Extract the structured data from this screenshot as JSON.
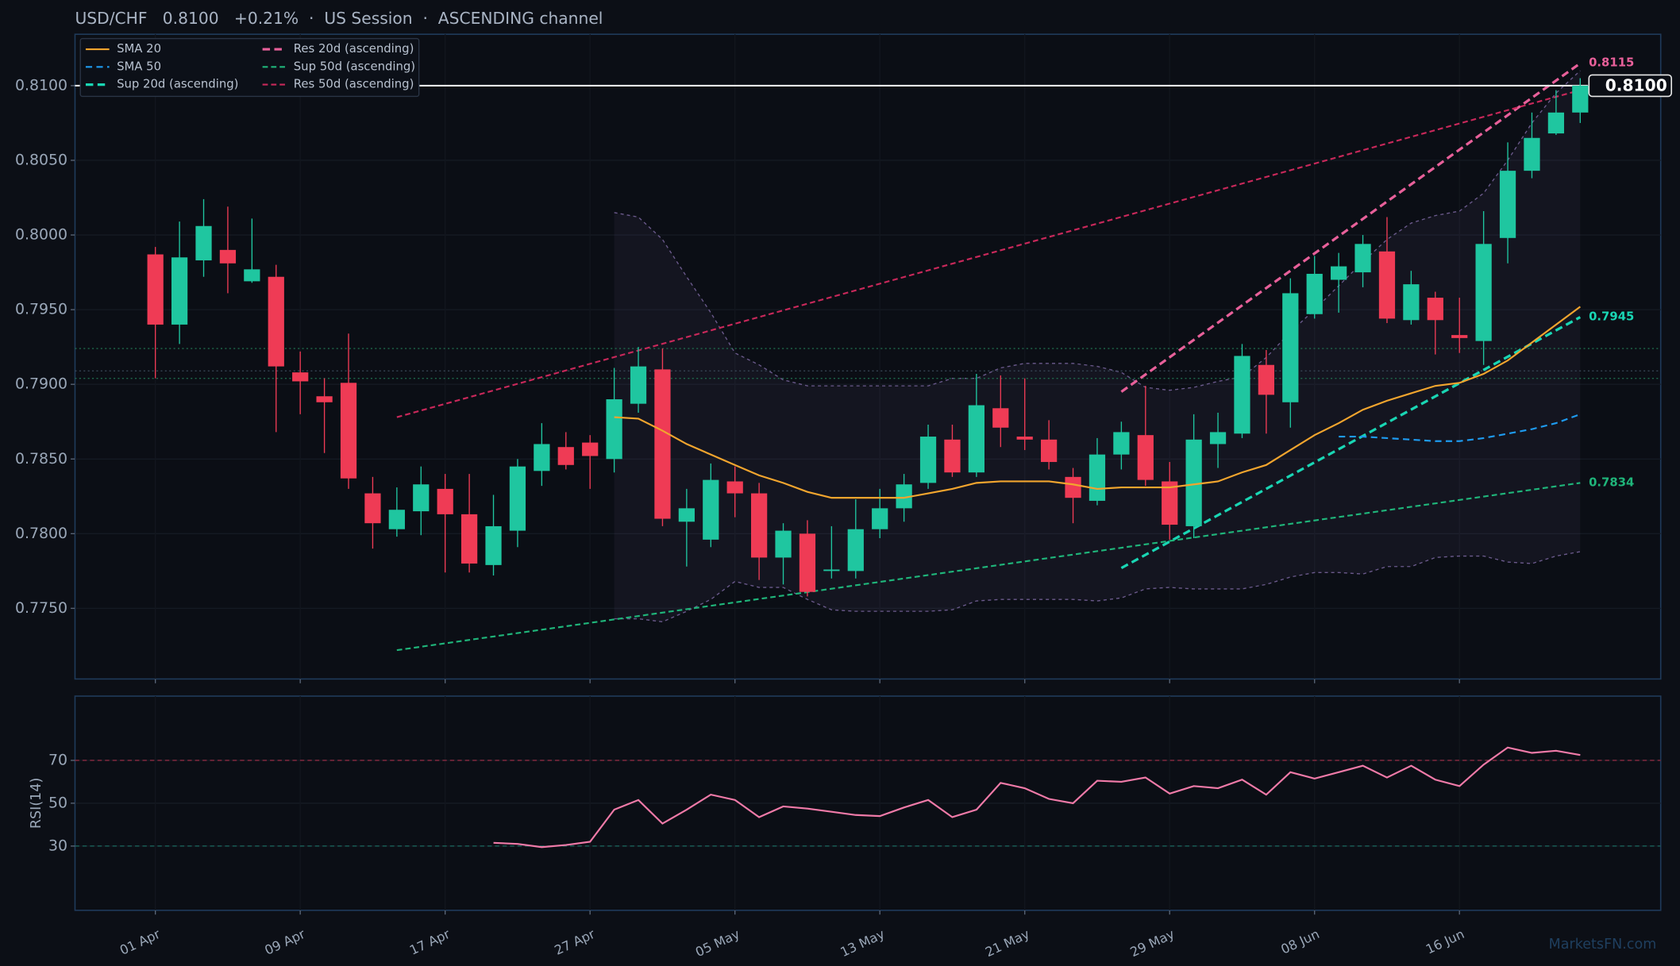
{
  "chart_data": [
    {
      "type": "candlestick",
      "title": "USD/CHF   0.8100   +0.21%  ·  US Session  ·  ASCENDING channel",
      "categories": [
        "01 Apr",
        null,
        null,
        null,
        null,
        null,
        "09 Apr",
        null,
        null,
        null,
        null,
        null,
        "17 Apr",
        null,
        null,
        null,
        null,
        null,
        "27 Apr",
        null,
        null,
        null,
        null,
        null,
        "05 May",
        null,
        null,
        null,
        null,
        null,
        "13 May",
        null,
        null,
        null,
        null,
        null,
        "21 May",
        null,
        null,
        null,
        null,
        null,
        "29 May",
        null,
        null,
        null,
        null,
        null,
        "08 Jun",
        null,
        null,
        null,
        null,
        null,
        "16 Jun",
        null,
        null,
        null,
        null,
        null
      ],
      "open": [
        0.7987,
        0.794,
        0.7983,
        0.799,
        0.7969,
        0.7972,
        0.7908,
        0.7892,
        0.7901,
        0.7827,
        0.7803,
        0.7815,
        0.783,
        0.7813,
        0.7779,
        0.7802,
        0.7842,
        0.7858,
        0.7861,
        0.785,
        0.7887,
        0.791,
        0.7808,
        0.7796,
        0.7835,
        0.7827,
        0.7784,
        0.78,
        0.7775,
        0.7775,
        0.7803,
        0.7817,
        0.7834,
        0.7863,
        0.7841,
        0.7884,
        0.7865,
        0.7863,
        0.7838,
        0.7822,
        0.7853,
        0.7866,
        0.7835,
        0.7805,
        0.786,
        0.7867,
        0.7913,
        0.7888,
        0.7947,
        0.797,
        0.7975,
        0.7989,
        0.7943,
        0.7958,
        0.7933,
        0.7929,
        0.7998,
        0.8043,
        0.8068,
        0.8082
      ],
      "high": [
        0.7992,
        0.8009,
        0.8024,
        0.8019,
        0.8011,
        0.798,
        0.7922,
        0.7904,
        0.7934,
        0.7838,
        0.7831,
        0.7845,
        0.784,
        0.784,
        0.7826,
        0.785,
        0.7874,
        0.7868,
        0.7866,
        0.7911,
        0.7925,
        0.7924,
        0.783,
        0.7847,
        0.7845,
        0.7834,
        0.7807,
        0.7809,
        0.7805,
        0.7823,
        0.783,
        0.784,
        0.7873,
        0.7873,
        0.7907,
        0.7906,
        0.7904,
        0.7876,
        0.7844,
        0.7864,
        0.7875,
        0.7899,
        0.7848,
        0.788,
        0.7881,
        0.7927,
        0.7923,
        0.7971,
        0.7986,
        0.7988,
        0.8,
        0.8012,
        0.7976,
        0.7962,
        0.7958,
        0.8016,
        0.8062,
        0.8082,
        0.8097,
        0.8105
      ],
      "low": [
        0.7904,
        0.7927,
        0.7972,
        0.7961,
        0.7968,
        0.7868,
        0.788,
        0.7854,
        0.783,
        0.779,
        0.7798,
        0.7799,
        0.7774,
        0.7774,
        0.7772,
        0.7791,
        0.7832,
        0.7843,
        0.783,
        0.7841,
        0.7881,
        0.7805,
        0.7778,
        0.7791,
        0.7811,
        0.7769,
        0.7766,
        0.7758,
        0.777,
        0.777,
        0.7797,
        0.7808,
        0.783,
        0.7838,
        0.7838,
        0.7858,
        0.7856,
        0.7843,
        0.7807,
        0.7819,
        0.7843,
        0.7832,
        0.7796,
        0.7797,
        0.7844,
        0.7864,
        0.7867,
        0.7871,
        0.7944,
        0.7948,
        0.7965,
        0.7941,
        0.794,
        0.792,
        0.7921,
        0.7913,
        0.7981,
        0.8038,
        0.8067,
        0.8075
      ],
      "close": [
        0.794,
        0.7985,
        0.8006,
        0.7981,
        0.7977,
        0.7912,
        0.7902,
        0.7888,
        0.7837,
        0.7807,
        0.7816,
        0.7833,
        0.7813,
        0.778,
        0.7805,
        0.7845,
        0.786,
        0.7846,
        0.7852,
        0.789,
        0.7912,
        0.781,
        0.7817,
        0.7836,
        0.7827,
        0.7784,
        0.7802,
        0.7761,
        0.7776,
        0.7803,
        0.7817,
        0.7833,
        0.7865,
        0.7841,
        0.7886,
        0.7871,
        0.7863,
        0.7848,
        0.7824,
        0.7853,
        0.7868,
        0.7836,
        0.7806,
        0.7863,
        0.7868,
        0.7919,
        0.7893,
        0.7961,
        0.7974,
        0.7979,
        0.7994,
        0.7944,
        0.7967,
        0.7943,
        0.7931,
        0.7994,
        0.8043,
        0.8065,
        0.8082,
        0.81
      ],
      "up_color": "#1fc6a0",
      "down_color": "#ef3b55",
      "series": [
        {
          "name": "SMA 20",
          "color": "#f2a52e",
          "style": "solid",
          "values": [
            null,
            null,
            null,
            null,
            null,
            null,
            null,
            null,
            null,
            null,
            null,
            null,
            null,
            null,
            null,
            null,
            null,
            null,
            null,
            0.7878,
            0.7877,
            0.7869,
            0.786,
            0.7853,
            0.7846,
            0.7839,
            0.7834,
            0.7828,
            0.7824,
            0.7824,
            0.7824,
            0.7824,
            0.7827,
            0.783,
            0.7834,
            0.7835,
            0.7835,
            0.7835,
            0.7833,
            0.783,
            0.7831,
            0.7831,
            0.7831,
            0.7833,
            0.7835,
            0.7841,
            0.7846,
            0.7856,
            0.7866,
            0.7874,
            0.7883,
            0.7889,
            0.7894,
            0.7899,
            0.7901,
            0.7907,
            0.7916,
            0.7928,
            0.794,
            0.7952
          ]
        },
        {
          "name": "SMA 50",
          "color": "#1e9bf0",
          "style": "dashed",
          "values": [
            null,
            null,
            null,
            null,
            null,
            null,
            null,
            null,
            null,
            null,
            null,
            null,
            null,
            null,
            null,
            null,
            null,
            null,
            null,
            null,
            null,
            null,
            null,
            null,
            null,
            null,
            null,
            null,
            null,
            null,
            null,
            null,
            null,
            null,
            null,
            null,
            null,
            null,
            null,
            null,
            null,
            null,
            null,
            null,
            null,
            null,
            null,
            null,
            null,
            0.7865,
            0.7865,
            0.7864,
            0.7863,
            0.7862,
            0.7862,
            0.7864,
            0.7867,
            0.787,
            0.7874,
            0.788
          ]
        }
      ],
      "trendlines": [
        {
          "name": "Sup 20d (ascending)",
          "color": "#19d6b4",
          "x": [
            40,
            59
          ],
          "values": [
            0.7777,
            0.7945
          ],
          "end_label": "0.7945"
        },
        {
          "name": "Res 20d (ascending)",
          "color": "#e8609a",
          "x": [
            40,
            59
          ],
          "values": [
            0.7895,
            0.8115
          ],
          "end_label": "0.8115"
        },
        {
          "name": "Sup 50d (ascending)",
          "color": "#1fb57a",
          "x": [
            10,
            59
          ],
          "values": [
            0.7722,
            0.7834
          ],
          "end_label": "0.7834"
        },
        {
          "name": "Res 50d (ascending)",
          "color": "#c8285a",
          "x": [
            10,
            59
          ],
          "values": [
            0.7878,
            0.8097
          ]
        }
      ],
      "band": {
        "color": "#6b5a8c",
        "upper": [
          null,
          null,
          null,
          null,
          null,
          null,
          null,
          null,
          null,
          null,
          null,
          null,
          null,
          null,
          null,
          null,
          null,
          null,
          null,
          0.8015,
          0.8012,
          0.7997,
          0.7972,
          0.7948,
          0.7921,
          0.7913,
          0.7903,
          0.7899,
          0.7899,
          0.7899,
          0.7899,
          0.7899,
          0.7899,
          0.7904,
          0.7904,
          0.7911,
          0.7914,
          0.7914,
          0.7914,
          0.7912,
          0.7908,
          0.7898,
          0.7896,
          0.7898,
          0.7902,
          0.7905,
          0.7918,
          0.7935,
          0.795,
          0.7966,
          0.7982,
          0.7997,
          0.8008,
          0.8013,
          0.8016,
          0.8028,
          0.805,
          0.8075,
          0.8095,
          0.811
        ],
        "lower": [
          null,
          null,
          null,
          null,
          null,
          null,
          null,
          null,
          null,
          null,
          null,
          null,
          null,
          null,
          null,
          null,
          null,
          null,
          null,
          0.7743,
          0.7743,
          0.7741,
          0.7748,
          0.7756,
          0.7768,
          0.7764,
          0.7764,
          0.7756,
          0.7749,
          0.7748,
          0.7748,
          0.7748,
          0.7748,
          0.7749,
          0.7755,
          0.7756,
          0.7756,
          0.7756,
          0.7756,
          0.7755,
          0.7757,
          0.7763,
          0.7764,
          0.7763,
          0.7763,
          0.7763,
          0.7766,
          0.7771,
          0.7774,
          0.7774,
          0.7773,
          0.7778,
          0.7778,
          0.7784,
          0.7785,
          0.7785,
          0.7781,
          0.778,
          0.7785,
          0.7788
        ]
      },
      "levels": [
        {
          "value": 0.7924,
          "color": "#1f6b4c"
        },
        {
          "value": 0.7909,
          "color": "#3a4a5a"
        },
        {
          "value": 0.7904,
          "color": "#1f6b4c"
        }
      ],
      "last_price": 0.81,
      "last_price_label": "0.8100",
      "ylim": [
        0.77027,
        0.81344
      ],
      "yticks": [
        {
          "value": 0.775,
          "label": "0.7750"
        },
        {
          "value": 0.78,
          "label": "0.7800"
        },
        {
          "value": 0.785,
          "label": "0.7850"
        },
        {
          "value": 0.79,
          "label": "0.7900"
        },
        {
          "value": 0.795,
          "label": "0.7950"
        },
        {
          "value": 0.8,
          "label": "0.8000"
        },
        {
          "value": 0.805,
          "label": "0.8050"
        },
        {
          "value": 0.81,
          "label": "0.8100"
        }
      ],
      "grid": true,
      "legend": "upper left"
    },
    {
      "type": "line",
      "y_label": "RSI(14)",
      "series": [
        {
          "color": "#f07aa8",
          "values": [
            null,
            null,
            null,
            null,
            null,
            null,
            null,
            null,
            null,
            null,
            null,
            null,
            null,
            null,
            31.5,
            31,
            29.5,
            30.5,
            32,
            47,
            51.5,
            40.5,
            47,
            54,
            51.5,
            43.5,
            48.5,
            47.5,
            46,
            44.5,
            44,
            48,
            51.5,
            43.5,
            47,
            59.5,
            57,
            52,
            50,
            60.5,
            60,
            62,
            54.5,
            58,
            57,
            61,
            54,
            64.5,
            61.5,
            64.5,
            67.5,
            62,
            67.5,
            61,
            58,
            68,
            76,
            73.5,
            74.5,
            72.5
          ]
        }
      ],
      "overbought": 70,
      "oversold": 30,
      "ylim": [
        0,
        100
      ],
      "yticks": [
        30,
        50,
        70
      ],
      "grid": true
    }
  ],
  "watermark": "MarketsFN.com"
}
